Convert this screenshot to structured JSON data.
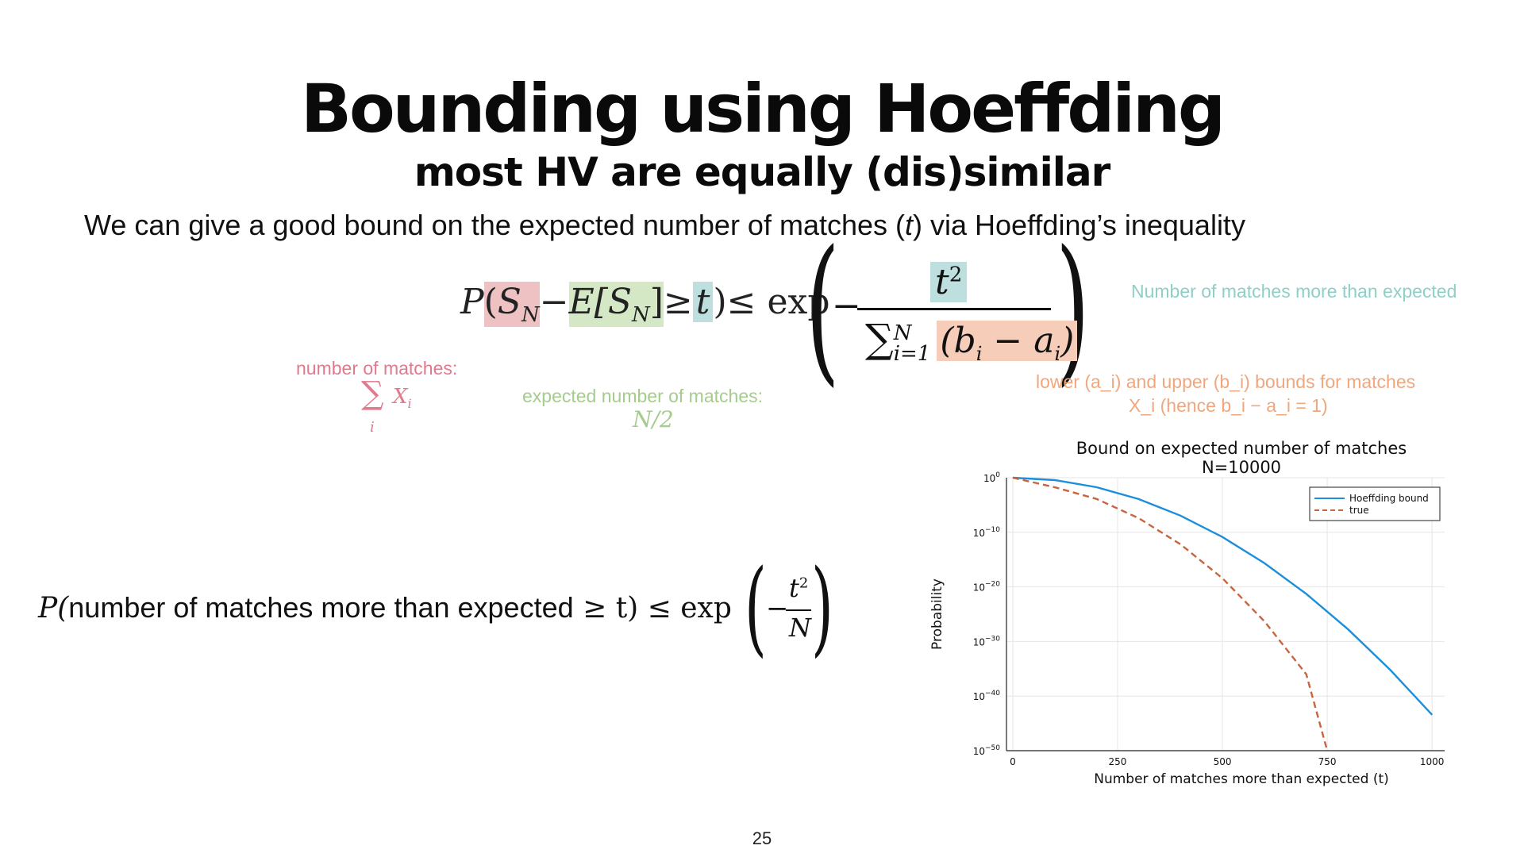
{
  "slide": {
    "title": "Bounding using Hoeffding",
    "subtitle": "most HV are equally (dis)similar",
    "intro_before": "We can give a good bound on the expected number of matches (",
    "intro_var": "t",
    "intro_after": ") via Hoeffding’s inequality",
    "page_number": "25"
  },
  "formula_main": {
    "p": "P",
    "lparen": "(",
    "sn": "S",
    "sn_sub": "N",
    "minus": " − ",
    "esn": "E[S",
    "esn_sub": "N",
    "esn_close": "]",
    "geq": " ≥ ",
    "t": "t",
    "rparen": ")",
    "leq_exp": " ≤ exp",
    "frac_minus": "−",
    "num_t": "t",
    "num_exp": "2",
    "den_sum": "∑",
    "den_sup": "N",
    "den_sub": "i=1",
    "den_body": "(b",
    "den_bi_sub": "i",
    "den_mid": " − a",
    "den_ai_sub": "i",
    "den_close": ")"
  },
  "annotations": {
    "teal_label": "Number of matches more than expected",
    "red_label": "number of matches:",
    "red_sum": "∑",
    "red_sum_sub": "i",
    "red_x": "X",
    "red_x_sub": "i",
    "green_label": "expected number of matches:",
    "green_math": "N/2",
    "orange_line1": "lower (a_i) and upper (b_i) bounds for matches",
    "orange_line2": "X_i (hence b_i − a_i = 1)"
  },
  "formula_bottom": {
    "p": "P(",
    "text": "number of matches more than expected",
    "geq_t": " ≥ t)",
    "leq_exp": " ≤ exp",
    "minus": "−",
    "num_t": "t",
    "num_exp": "2",
    "den": "N"
  },
  "colors": {
    "red": "#e07a8d",
    "green": "#a5cc8d",
    "teal": "#8ecfc7",
    "orange": "#f0a77e",
    "hoeffding_line": "#1b8fdb",
    "true_line": "#c8643e"
  },
  "chart_data": {
    "type": "line",
    "title": "Bound on expected number of matches",
    "subtitle": "N=10000",
    "xlabel": "Number of matches more than expected (t)",
    "ylabel": "Probability",
    "xlim": [
      -15,
      1030
    ],
    "x_ticks": [
      0,
      250,
      500,
      750,
      1000
    ],
    "y_scale": "log",
    "ylim_log10": [
      -50,
      0
    ],
    "y_ticks": [
      {
        "base": "10",
        "exp": "0",
        "log10": 0
      },
      {
        "base": "10",
        "exp": "−10",
        "log10": -10
      },
      {
        "base": "10",
        "exp": "−20",
        "log10": -20
      },
      {
        "base": "10",
        "exp": "−30",
        "log10": -30
      },
      {
        "base": "10",
        "exp": "−40",
        "log10": -40
      },
      {
        "base": "10",
        "exp": "−50",
        "log10": -50
      }
    ],
    "grid": true,
    "legend_position": "top-right",
    "series": [
      {
        "name": "Hoeffding bound",
        "style": "solid",
        "x": [
          0,
          100,
          200,
          300,
          400,
          500,
          600,
          700,
          800,
          900,
          1000
        ],
        "log10_y": [
          0,
          -0.43,
          -1.74,
          -3.91,
          -6.95,
          -10.86,
          -15.64,
          -21.28,
          -27.79,
          -35.18,
          -43.43
        ]
      },
      {
        "name": "true",
        "style": "dashed",
        "x": [
          0,
          100,
          200,
          300,
          400,
          500,
          600,
          700,
          750
        ],
        "log10_y": [
          0,
          -1.74,
          -3.9,
          -7.4,
          -12.2,
          -18.4,
          -26.3,
          -36.0,
          -50.0
        ]
      }
    ]
  }
}
